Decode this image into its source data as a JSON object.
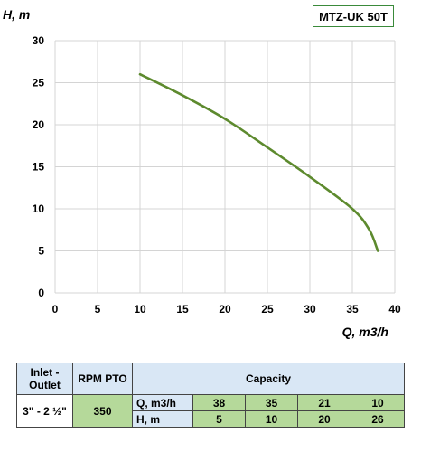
{
  "badge": {
    "model": "MTZ-UK 50T"
  },
  "chart_data": {
    "type": "line",
    "title": "",
    "xlabel": "Q, m3/h",
    "ylabel": "H, m",
    "xlim": [
      0,
      40
    ],
    "ylim": [
      0,
      30
    ],
    "x_ticks": [
      "0",
      "5",
      "10",
      "15",
      "20",
      "25",
      "30",
      "35",
      "40"
    ],
    "y_ticks": [
      "0",
      "5",
      "10",
      "15",
      "20",
      "25",
      "30"
    ],
    "grid": true,
    "line_color": "#5d8a2e",
    "series": [
      {
        "x": [
          10,
          15,
          20,
          25,
          30,
          35,
          37,
          38
        ],
        "y": [
          26,
          23.5,
          20.7,
          17.3,
          13.8,
          10,
          7.5,
          5
        ]
      }
    ]
  },
  "table": {
    "inlet_header": "Inlet - Outlet",
    "rpm_header": "RPM PTO",
    "capacity_header": "Capacity",
    "inlet_value": "3\" - 2 ½\"",
    "rpm_value": "350",
    "q_label": "Q, m3/h",
    "h_label": "H, m",
    "q_values": [
      "38",
      "35",
      "21",
      "10"
    ],
    "h_values": [
      "5",
      "10",
      "20",
      "26"
    ]
  },
  "colors": {
    "header_bg": "#d9e7f5",
    "value_bg": "#b5d99a",
    "badge_border": "#3a8a3a"
  }
}
